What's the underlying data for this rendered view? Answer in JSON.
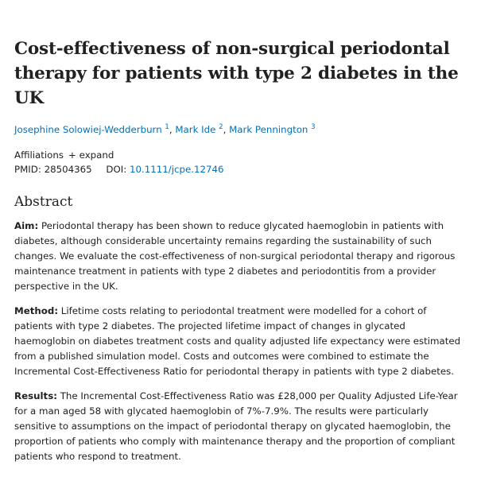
{
  "article": {
    "title": "Cost-effectiveness of non-surgical periodontal therapy for patients with type 2 diabetes in the UK",
    "authors": [
      {
        "name": "Josephine Solowiej-Wedderburn",
        "sup": "1"
      },
      {
        "name": "Mark Ide",
        "sup": "2"
      },
      {
        "name": "Mark Pennington",
        "sup": "3"
      }
    ],
    "affiliations_label": "Affiliations",
    "expand_label": "+ expand",
    "pmid_label": "PMID:",
    "pmid": "28504365",
    "doi_label": "DOI:",
    "doi": "10.1111/jcpe.12746"
  },
  "abstract": {
    "heading": "Abstract",
    "sections": [
      {
        "label": "Aim:",
        "text": "Periodontal therapy has been shown to reduce glycated haemoglobin in patients with diabetes, although considerable uncertainty remains regarding the sustainability of such changes. We evaluate the cost-effectiveness of non-surgical periodontal therapy and rigorous maintenance treatment in patients with type 2 diabetes and periodontitis from a provider perspective in the UK."
      },
      {
        "label": "Method:",
        "text": "Lifetime costs relating to periodontal treatment were modelled for a cohort of patients with type 2 diabetes. The projected lifetime impact of changes in glycated haemoglobin on diabetes treatment costs and quality adjusted life expectancy were estimated from a published simulation model. Costs and outcomes were combined to estimate the Incremental Cost-Effectiveness Ratio for periodontal therapy in patients with type 2 diabetes."
      },
      {
        "label": "Results:",
        "text": "The Incremental Cost-Effectiveness Ratio was £28,000 per Quality Adjusted Life-Year for a man aged 58 with glycated haemoglobin of 7%-7.9%. The results were particularly sensitive to assumptions on the impact of periodontal therapy on glycated haemoglobin, the proportion of patients who comply with maintenance therapy and the proportion of compliant patients who respond to treatment."
      }
    ]
  }
}
